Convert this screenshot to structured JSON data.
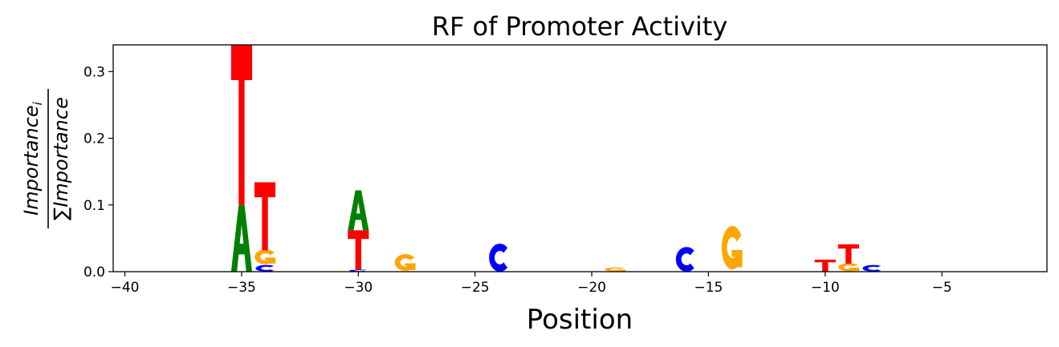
{
  "chart_data": {
    "type": "sequence-logo",
    "title": "RF of Promoter Activity",
    "xlabel": "Position",
    "ylabel_numerator": "Importance",
    "ylabel_numerator_sub": "i",
    "ylabel_sum": "∑",
    "ylabel_denominator": "Importance",
    "xlim": [
      -40.5,
      -0.5
    ],
    "ylim": [
      0,
      0.34
    ],
    "xticks": [
      -40,
      -35,
      -30,
      -25,
      -20,
      -15,
      -10,
      -5
    ],
    "xtick_labels": [
      "−40",
      "−35",
      "−30",
      "−25",
      "−20",
      "−15",
      "−10",
      "−5"
    ],
    "yticks": [
      0.0,
      0.1,
      0.2,
      0.3
    ],
    "ytick_labels": [
      "0.0",
      "0.1",
      "0.2",
      "0.3"
    ],
    "grid": false,
    "base_colors": {
      "A": "#008000",
      "C": "#0000ff",
      "G": "#ffa500",
      "T": "#ff0000"
    },
    "positions": [
      {
        "x": -35,
        "bases": [
          {
            "base": "A",
            "value": 0.1
          },
          {
            "base": "T",
            "value": 0.24
          }
        ]
      },
      {
        "x": -34,
        "bases": [
          {
            "base": "C",
            "value": 0.01
          },
          {
            "base": "G",
            "value": 0.022
          },
          {
            "base": "T",
            "value": 0.102
          }
        ]
      },
      {
        "x": -30,
        "bases": [
          {
            "base": "C",
            "value": 0.003
          },
          {
            "base": "T",
            "value": 0.059
          },
          {
            "base": "A",
            "value": 0.06
          }
        ]
      },
      {
        "x": -28,
        "bases": [
          {
            "base": "G",
            "value": 0.025
          }
        ]
      },
      {
        "x": -24,
        "bases": [
          {
            "base": "C",
            "value": 0.042
          }
        ]
      },
      {
        "x": -19,
        "bases": [
          {
            "base": "G",
            "value": 0.006
          }
        ]
      },
      {
        "x": -16,
        "bases": [
          {
            "base": "C",
            "value": 0.037
          }
        ]
      },
      {
        "x": -14,
        "bases": [
          {
            "base": "G",
            "value": 0.065
          }
        ]
      },
      {
        "x": -10,
        "bases": [
          {
            "base": "T",
            "value": 0.018
          }
        ]
      },
      {
        "x": -9,
        "bases": [
          {
            "base": "G",
            "value": 0.012
          },
          {
            "base": "T",
            "value": 0.029
          }
        ]
      },
      {
        "x": -8,
        "bases": [
          {
            "base": "C",
            "value": 0.01
          }
        ]
      }
    ]
  }
}
